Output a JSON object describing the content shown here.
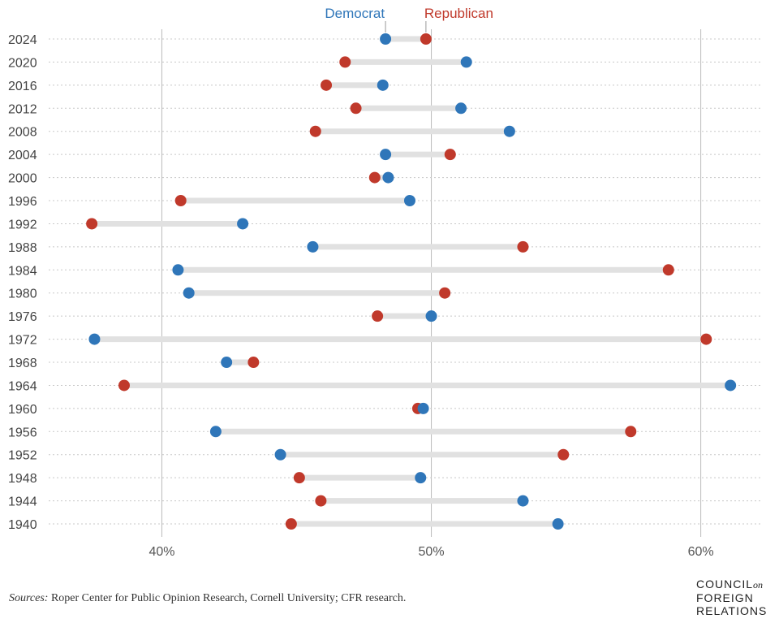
{
  "chart_data": {
    "type": "dumbbell",
    "legend": {
      "democrat": "Democrat",
      "republican": "Republican"
    },
    "colors": {
      "democrat": "#2f76b9",
      "republican": "#c0392b",
      "bar": "#e1e1e1",
      "grid": "#bbbbbb"
    },
    "x_ticks": [
      {
        "value": 40,
        "label": "40%"
      },
      {
        "value": 50,
        "label": "50%"
      },
      {
        "value": 60,
        "label": "60%"
      }
    ],
    "xlim": [
      35.8,
      62.3
    ],
    "rows": [
      {
        "year": "2024",
        "dem": 48.3,
        "rep": 49.8
      },
      {
        "year": "2020",
        "dem": 51.3,
        "rep": 46.8
      },
      {
        "year": "2016",
        "dem": 48.2,
        "rep": 46.1
      },
      {
        "year": "2012",
        "dem": 51.1,
        "rep": 47.2
      },
      {
        "year": "2008",
        "dem": 52.9,
        "rep": 45.7
      },
      {
        "year": "2004",
        "dem": 48.3,
        "rep": 50.7
      },
      {
        "year": "2000",
        "dem": 48.4,
        "rep": 47.9
      },
      {
        "year": "1996",
        "dem": 49.2,
        "rep": 40.7
      },
      {
        "year": "1992",
        "dem": 43.0,
        "rep": 37.4
      },
      {
        "year": "1988",
        "dem": 45.6,
        "rep": 53.4
      },
      {
        "year": "1984",
        "dem": 40.6,
        "rep": 58.8
      },
      {
        "year": "1980",
        "dem": 41.0,
        "rep": 50.5
      },
      {
        "year": "1976",
        "dem": 50.0,
        "rep": 48.0
      },
      {
        "year": "1972",
        "dem": 37.5,
        "rep": 60.2
      },
      {
        "year": "1968",
        "dem": 42.4,
        "rep": 43.4
      },
      {
        "year": "1964",
        "dem": 61.1,
        "rep": 38.6
      },
      {
        "year": "1960",
        "dem": 49.7,
        "rep": 49.5
      },
      {
        "year": "1956",
        "dem": 42.0,
        "rep": 57.4
      },
      {
        "year": "1952",
        "dem": 44.4,
        "rep": 54.9
      },
      {
        "year": "1948",
        "dem": 49.6,
        "rep": 45.1
      },
      {
        "year": "1944",
        "dem": 53.4,
        "rep": 45.9
      },
      {
        "year": "1940",
        "dem": 54.7,
        "rep": 44.8
      }
    ]
  },
  "footer": {
    "source_label": "Sources:",
    "source_text": " Roper Center for Public Opinion Research, Cornell University; CFR research.",
    "logo": {
      "line1": "COUNCIL",
      "line1_suffix": "on",
      "line2": "FOREIGN",
      "line3": "RELATIONS"
    }
  }
}
